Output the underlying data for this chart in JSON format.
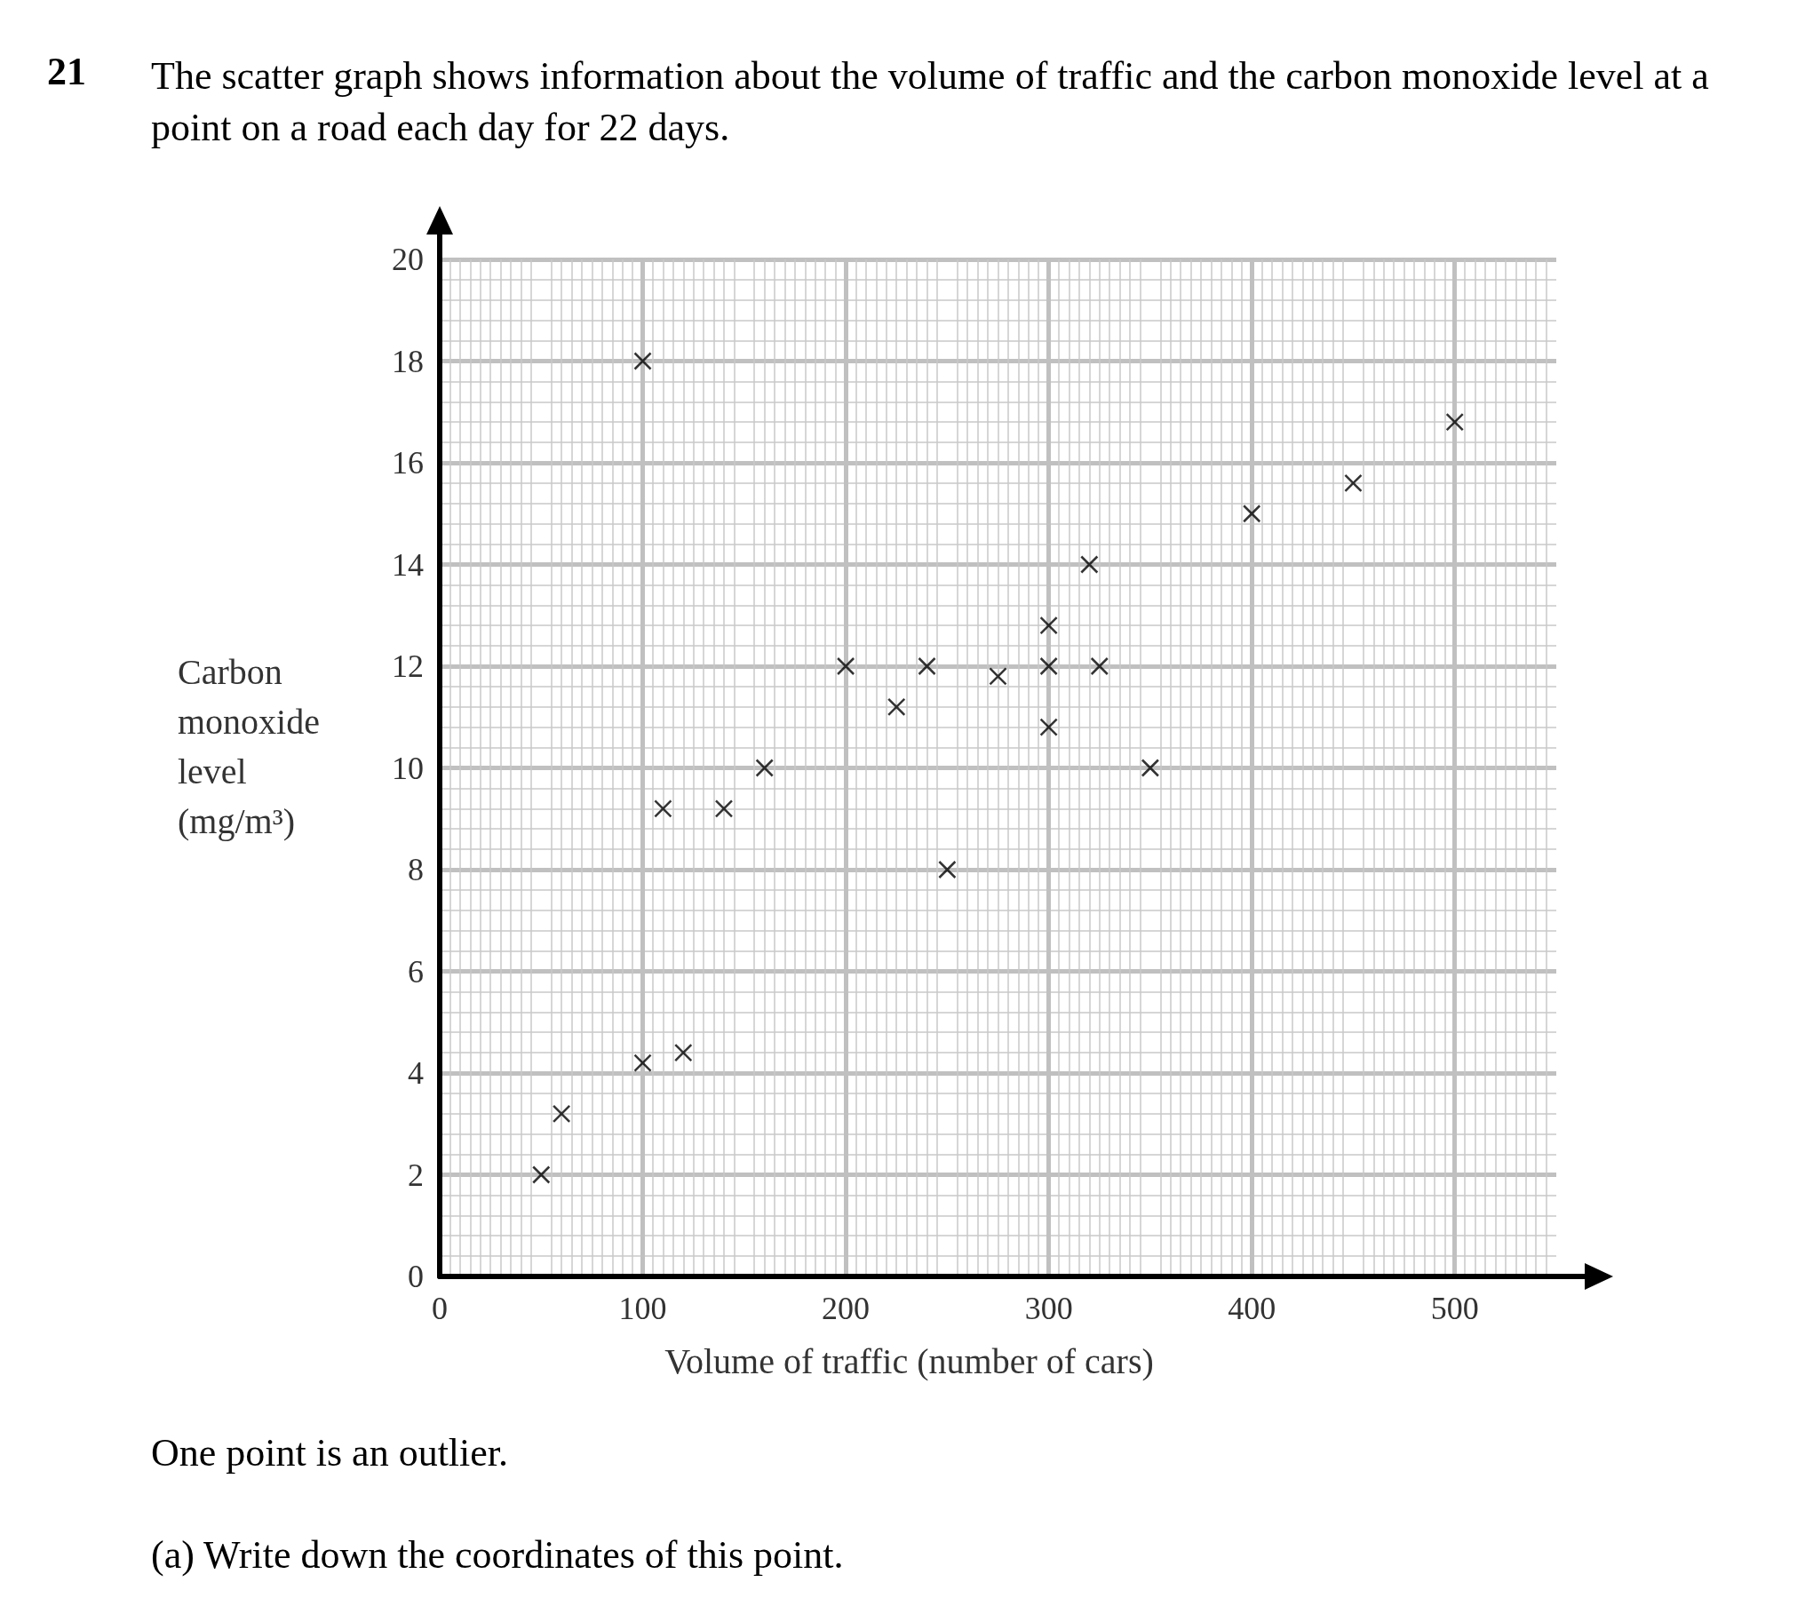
{
  "chart_data": {
    "type": "scatter",
    "title": "The scatter graph shows information about the volume of traffic and the carbon monoxide level at a point on a road each day for 22 days.",
    "xlabel": "Volume of traffic (number of cars)",
    "ylabel": "Carbon monoxide level (mg/m³)",
    "annotations": [
      "21",
      "One point is an outlier.",
      "(a) Write down the coordinates of this point."
    ],
    "x": [
      50,
      60,
      100,
      120,
      100,
      110,
      140,
      160,
      200,
      225,
      240,
      250,
      275,
      300,
      300,
      300,
      320,
      325,
      350,
      400,
      450,
      500
    ],
    "values": [
      2,
      3.2,
      4.2,
      4.4,
      18,
      9.2,
      9.2,
      10,
      12,
      11.2,
      12,
      8,
      11.8,
      12.8,
      12,
      10.8,
      14,
      12,
      10,
      15,
      15.6,
      16.8
    ],
    "color": "#000000",
    "marker": "cross",
    "grid": true,
    "xlim": [
      0,
      550
    ],
    "xticks": [
      0,
      100,
      200,
      300,
      400,
      500
    ],
    "ylim": [
      0,
      20
    ],
    "yticks": [
      0,
      2,
      4,
      6,
      8,
      10,
      12,
      14,
      16,
      18,
      20
    ]
  }
}
